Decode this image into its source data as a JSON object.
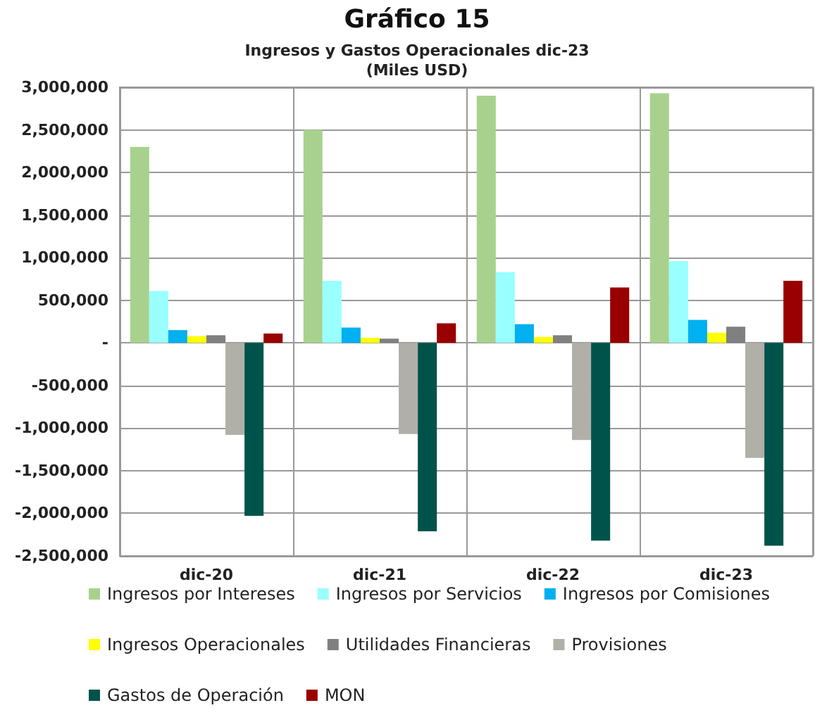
{
  "chart_data": {
    "type": "bar",
    "title": "Gráfico 15",
    "subtitle": "Ingresos y Gastos Operacionales dic-23\n(Miles USD)",
    "categories": [
      "dic-20",
      "dic-21",
      "dic-22",
      "dic-23"
    ],
    "series": [
      {
        "name": "Ingresos por Intereses",
        "color": "#a9d18e",
        "values": [
          2300000,
          2500000,
          2900000,
          2930000
        ]
      },
      {
        "name": "Ingresos por Servicios",
        "color": "#99ffff",
        "values": [
          610000,
          730000,
          830000,
          960000
        ]
      },
      {
        "name": "Ingresos por Comisiones",
        "color": "#00b0f0",
        "values": [
          150000,
          180000,
          220000,
          270000
        ]
      },
      {
        "name": "Ingresos Operacionales",
        "color": "#ffff00",
        "values": [
          80000,
          60000,
          70000,
          120000
        ]
      },
      {
        "name": "Utilidades Financieras",
        "color": "#808080",
        "values": [
          90000,
          50000,
          90000,
          190000
        ]
      },
      {
        "name": "Provisiones",
        "color": "#b0b0a8",
        "values": [
          -1080000,
          -1070000,
          -1140000,
          -1350000
        ]
      },
      {
        "name": "Gastos de Operación",
        "color": "#00534a",
        "values": [
          -2030000,
          -2210000,
          -2320000,
          -2380000
        ]
      },
      {
        "name": "MON",
        "color": "#990000",
        "values": [
          110000,
          230000,
          650000,
          730000
        ]
      }
    ],
    "ylim": [
      -2500000,
      3000000
    ],
    "yticks": [
      {
        "value": -2500000,
        "label": "-2,500,000"
      },
      {
        "value": -2000000,
        "label": "-2,000,000"
      },
      {
        "value": -1500000,
        "label": "-1,500,000"
      },
      {
        "value": -1000000,
        "label": "-1,000,000"
      },
      {
        "value": -500000,
        "label": "-500,000"
      },
      {
        "value": 0,
        "label": "-"
      },
      {
        "value": 500000,
        "label": "500,000"
      },
      {
        "value": 1000000,
        "label": "1,000,000"
      },
      {
        "value": 1500000,
        "label": "1,500,000"
      },
      {
        "value": 2000000,
        "label": "2,000,000"
      },
      {
        "value": 2500000,
        "label": "2,500,000"
      },
      {
        "value": 3000000,
        "label": "3,000,000"
      }
    ],
    "grid": true,
    "legend": "bottom"
  }
}
